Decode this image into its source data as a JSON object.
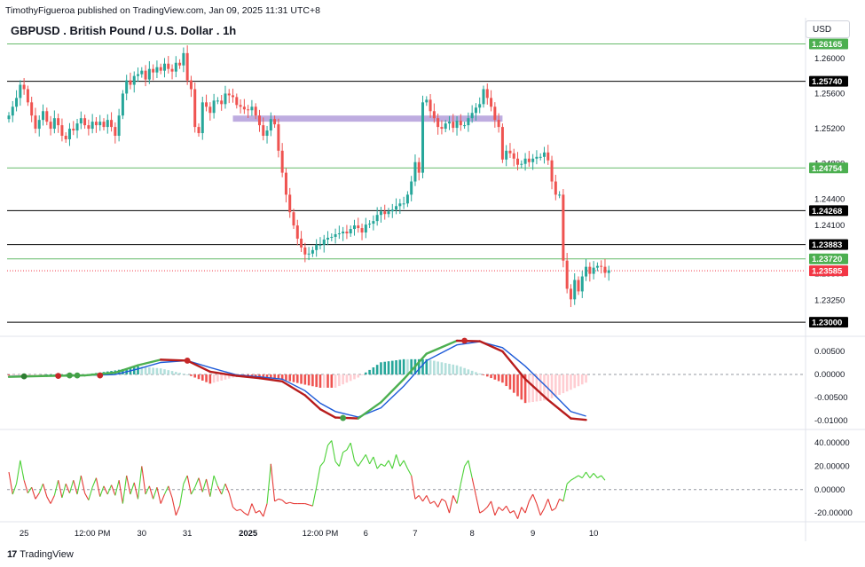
{
  "header": {
    "published_line": "TimothyFigueroa published on TradingView.com, Jan 09, 2025 11:31 UTC+8",
    "title": "GBPUSD . British Pound / U.S. Dollar . 1h",
    "currency": "USD"
  },
  "footer": {
    "brand": "TradingView",
    "logo_text": "17"
  },
  "colors": {
    "up": "#26a69a",
    "down": "#ef5350",
    "black_level": "#000000",
    "green_level": "#66bb6a",
    "zone": "#b39ddb",
    "macd_fast": "#2e7d32",
    "macd_fast_down": "#b71c1c",
    "macd_slow": "#1e5bd8",
    "osc_up": "#4cd137",
    "osc_down": "#e53935",
    "last_price": "#f23645"
  },
  "chart_data": [
    {
      "type": "candlestick",
      "pane": "price",
      "title": "GBPUSD . British Pound / U.S. Dollar . 1h",
      "ylim": [
        1.229,
        1.2622
      ],
      "y_ticks": [
        1.2325,
        1.2355,
        1.241,
        1.244,
        1.248,
        1.252,
        1.256,
        1.26
      ],
      "y_tick_labels": [
        "1.23250",
        "1.23500",
        "1.24100",
        "1.24400",
        "1.24800",
        "1.25200",
        "1.25600",
        "1.26000"
      ],
      "x_labels": [
        {
          "index": 4,
          "label": "25"
        },
        {
          "index": 22,
          "label": "12:00 PM"
        },
        {
          "index": 35,
          "label": "30"
        },
        {
          "index": 47,
          "label": "31"
        },
        {
          "index": 63,
          "label": "2025"
        },
        {
          "index": 82,
          "label": "12:00 PM"
        },
        {
          "index": 94,
          "label": "6"
        },
        {
          "index": 107,
          "label": "7"
        },
        {
          "index": 122,
          "label": "8"
        },
        {
          "index": 138,
          "label": "9"
        },
        {
          "index": 154,
          "label": "10"
        }
      ],
      "levels": [
        {
          "price": 1.26165,
          "label": "1.26165",
          "kind": "green"
        },
        {
          "price": 1.2574,
          "label": "1.25740",
          "kind": "black"
        },
        {
          "price": 1.24754,
          "label": "1.24754",
          "kind": "green"
        },
        {
          "price": 1.24268,
          "label": "1.24268",
          "kind": "black"
        },
        {
          "price": 1.23883,
          "label": "1.23883",
          "kind": "black"
        },
        {
          "price": 1.2372,
          "label": "1.23720",
          "kind": "green"
        },
        {
          "price": 1.23,
          "label": "1.23000",
          "kind": "black"
        }
      ],
      "last_price": {
        "price": 1.23585,
        "label": "1.23585"
      },
      "zone": {
        "from_index": 59,
        "to_index": 130,
        "low": 1.2528,
        "high": 1.2535
      },
      "closes": [
        1.2535,
        1.2545,
        1.2555,
        1.257,
        1.2565,
        1.255,
        1.2535,
        1.252,
        1.253,
        1.254,
        1.2528,
        1.252,
        1.2532,
        1.2524,
        1.2512,
        1.2508,
        1.252,
        1.2518,
        1.2526,
        1.2532,
        1.2524,
        1.252,
        1.2528,
        1.2524,
        1.2528,
        1.2522,
        1.253,
        1.2522,
        1.2512,
        1.2535,
        1.256,
        1.2575,
        1.257,
        1.258,
        1.2582,
        1.2586,
        1.2576,
        1.2588,
        1.2584,
        1.259,
        1.2586,
        1.2594,
        1.2588,
        1.2585,
        1.2595,
        1.2592,
        1.2606,
        1.2575,
        1.2565,
        1.2522,
        1.2515,
        1.255,
        1.2545,
        1.2538,
        1.2552,
        1.2552,
        1.2548,
        1.256,
        1.2558,
        1.2556,
        1.2547,
        1.2545,
        1.2542,
        1.2541,
        1.2545,
        1.2535,
        1.2524,
        1.2512,
        1.2518,
        1.2531,
        1.2525,
        1.2495,
        1.247,
        1.2445,
        1.2425,
        1.241,
        1.2395,
        1.2385,
        1.2377,
        1.2378,
        1.2382,
        1.2388,
        1.2388,
        1.2394,
        1.2396,
        1.2397,
        1.24,
        1.2401,
        1.2403,
        1.2401,
        1.2406,
        1.241,
        1.2407,
        1.2402,
        1.2411,
        1.2412,
        1.2415,
        1.2422,
        1.2426,
        1.2423,
        1.2426,
        1.2428,
        1.2432,
        1.2435,
        1.2435,
        1.2445,
        1.246,
        1.2482,
        1.247,
        1.255,
        1.2553,
        1.254,
        1.2532,
        1.2522,
        1.252,
        1.2526,
        1.2528,
        1.2521,
        1.2529,
        1.2524,
        1.2524,
        1.2532,
        1.2538,
        1.2544,
        1.2548,
        1.2565,
        1.2555,
        1.2545,
        1.253,
        1.2522,
        1.2485,
        1.2495,
        1.2492,
        1.2486,
        1.2479,
        1.248,
        1.2486,
        1.2482,
        1.2486,
        1.2488,
        1.2488,
        1.2493,
        1.2484,
        1.246,
        1.2445,
        1.2445,
        1.237,
        1.2338,
        1.2326,
        1.2348,
        1.2335,
        1.2352,
        1.2363,
        1.2355,
        1.2362,
        1.2364,
        1.2363,
        1.2356,
        1.2359
      ],
      "low": 1.2321,
      "high": 1.2608
    },
    {
      "type": "line",
      "pane": "macd",
      "ylim": [
        -0.0115,
        0.0073
      ],
      "y_ticks": [
        0.005,
        0.0,
        -0.005,
        -0.01
      ],
      "y_tick_labels": [
        "0.00500",
        "0.00000",
        "-0.00500",
        "-0.01000"
      ],
      "series": [
        {
          "color": "fast",
          "x": [
            0,
            10,
            20,
            28,
            34,
            40,
            47,
            53,
            60,
            66,
            72,
            78,
            82,
            86,
            92,
            98,
            104,
            110,
            118,
            124,
            130,
            136,
            142,
            148,
            152
          ],
          "values": [
            -0.0005,
            -0.0003,
            -0.0002,
            0.0004,
            0.002,
            0.0032,
            0.003,
            0.0006,
            -0.0003,
            -0.0008,
            -0.0015,
            -0.0045,
            -0.0075,
            -0.0093,
            -0.0095,
            -0.006,
            -0.001,
            0.0045,
            0.0073,
            0.0072,
            0.005,
            -0.001,
            -0.0055,
            -0.0095,
            -0.0098
          ]
        },
        {
          "color": "slow",
          "x": [
            0,
            10,
            20,
            28,
            34,
            40,
            47,
            53,
            60,
            66,
            72,
            78,
            82,
            86,
            92,
            98,
            104,
            110,
            118,
            124,
            130,
            136,
            142,
            148,
            152
          ],
          "values": [
            -0.0004,
            -0.0003,
            -0.0002,
            0.0,
            0.0012,
            0.0026,
            0.003,
            0.0015,
            -0.0001,
            -0.0005,
            -0.001,
            -0.0035,
            -0.0062,
            -0.008,
            -0.0092,
            -0.0072,
            -0.0025,
            0.003,
            0.0064,
            0.0071,
            0.0058,
            0.0018,
            -0.003,
            -0.008,
            -0.009
          ]
        }
      ],
      "markers": [
        {
          "x": 4,
          "value": -0.0004,
          "color": "#2e7d32"
        },
        {
          "x": 13,
          "value": -0.0003,
          "color": "#c62828"
        },
        {
          "x": 16,
          "value": -0.0002,
          "color": "#43a047"
        },
        {
          "x": 18,
          "value": -0.0002,
          "color": "#43a047"
        },
        {
          "x": 24,
          "value": -0.0002,
          "color": "#c62828"
        },
        {
          "x": 47,
          "value": 0.003,
          "color": "#c62828"
        },
        {
          "x": 88,
          "value": -0.0094,
          "color": "#43a047"
        },
        {
          "x": 120,
          "value": 0.0073,
          "color": "#c62828"
        }
      ]
    },
    {
      "type": "line",
      "pane": "oscillator",
      "ylim": [
        -26,
        50
      ],
      "y_ticks": [
        40,
        20,
        0,
        -20
      ],
      "y_tick_labels": [
        "40.00000",
        "20.00000",
        "0.00000",
        "-20.00000"
      ],
      "values": [
        15,
        -4,
        5,
        25,
        8,
        -3,
        2,
        -8,
        -3,
        5,
        -6,
        -12,
        -5,
        8,
        -7,
        5,
        -3,
        8,
        -4,
        12,
        -3,
        -9,
        2,
        10,
        -6,
        3,
        -4,
        4,
        -5,
        8,
        -12,
        12,
        -4,
        6,
        -8,
        20,
        -4,
        3,
        -8,
        2,
        -12,
        -4,
        3,
        -7,
        -22,
        -14,
        5,
        12,
        -4,
        2,
        10,
        -2,
        9,
        -6,
        12,
        3,
        -4,
        5,
        -3,
        -15,
        -18,
        -17,
        -20,
        -22,
        -12,
        -20,
        -18,
        -23,
        -12,
        22,
        -10,
        -8,
        -9,
        -12,
        -11,
        -12,
        -12,
        -12,
        -12,
        -13,
        -14,
        2,
        20,
        24,
        38,
        42,
        24,
        20,
        32,
        34,
        40,
        25,
        20,
        25,
        30,
        22,
        28,
        18,
        22,
        20,
        25,
        18,
        30,
        20,
        25,
        18,
        12,
        -8,
        -5,
        -10,
        -5,
        -12,
        -10,
        -15,
        -8,
        -10,
        -20,
        -5,
        -12,
        5,
        20,
        25,
        10,
        -5,
        -20,
        -18,
        -15,
        -10,
        -22,
        -15,
        -18,
        -14,
        -20,
        -18,
        -25,
        -15,
        -20,
        -10,
        -4,
        -12,
        -22,
        -16,
        -8,
        -18,
        -16,
        -8,
        -10,
        5,
        8,
        10,
        12,
        10,
        15,
        10,
        14,
        10,
        12,
        8
      ]
    }
  ]
}
